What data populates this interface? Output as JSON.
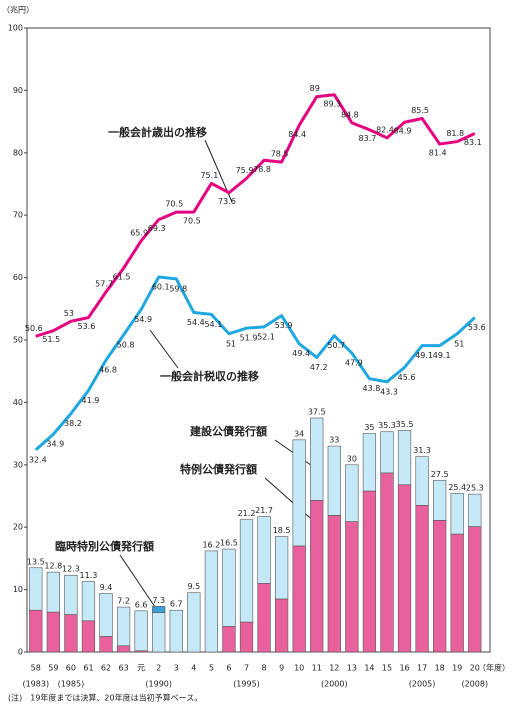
{
  "chart_data": {
    "type": "bar-line",
    "y_unit": "（兆円）",
    "x_unit": "（年度）",
    "note": "(注)　19年度までは決算、20年度は当初予算ベース。",
    "categories": [
      "58",
      "59",
      "60",
      "61",
      "62",
      "63",
      "元",
      "2",
      "3",
      "4",
      "5",
      "6",
      "7",
      "8",
      "9",
      "10",
      "11",
      "12",
      "13",
      "14",
      "15",
      "16",
      "17",
      "18",
      "19",
      "20"
    ],
    "year_labels": [
      "(1983)",
      null,
      "(1985)",
      null,
      null,
      null,
      null,
      "(1990)",
      null,
      null,
      null,
      null,
      "(1995)",
      null,
      null,
      null,
      null,
      "(2000)",
      null,
      null,
      null,
      null,
      "(2005)",
      null,
      null,
      "(2008)"
    ],
    "ylim": [
      0,
      100
    ],
    "yticks": [
      0,
      10,
      20,
      30,
      40,
      50,
      60,
      70,
      80,
      90,
      100
    ],
    "bar_series": [
      {
        "name": "特例公債発行額",
        "color": "#e8619c",
        "values": [
          6.7,
          6.4,
          6.0,
          5.0,
          2.5,
          1.0,
          0.2,
          0,
          0,
          0,
          0,
          4.1,
          4.8,
          11.0,
          8.5,
          17.0,
          24.3,
          21.9,
          20.9,
          25.8,
          28.7,
          26.8,
          23.5,
          21.1,
          18.9,
          20.1
        ]
      },
      {
        "name": "臨時特別公債発行額",
        "color": "#3a9fd6",
        "values": [
          0,
          0,
          0,
          0,
          0,
          0,
          0,
          1.0,
          0,
          0,
          0,
          0,
          0,
          0,
          0,
          0,
          0,
          0,
          0,
          0,
          0,
          0,
          0,
          0,
          0,
          0
        ]
      },
      {
        "name": "建設公債発行額",
        "color": "#c6e9f8",
        "values": [
          6.8,
          6.4,
          6.3,
          6.3,
          6.9,
          6.2,
          6.4,
          6.3,
          6.7,
          9.5,
          16.2,
          12.4,
          16.4,
          10.7,
          10.0,
          17.0,
          13.2,
          11.1,
          9.1,
          9.2,
          6.6,
          8.7,
          7.8,
          6.4,
          6.5,
          5.2
        ]
      }
    ],
    "totals": [
      13.5,
      12.8,
      12.3,
      11.3,
      9.4,
      7.2,
      6.6,
      7.3,
      6.7,
      9.5,
      16.2,
      16.5,
      21.2,
      21.7,
      18.5,
      34.0,
      37.5,
      33.0,
      30.0,
      35.0,
      35.3,
      35.5,
      31.3,
      27.5,
      25.4,
      25.3
    ],
    "line_series": [
      {
        "name": "一般会計歳出の推移",
        "color": "#e4007f",
        "values": [
          50.6,
          51.5,
          53.0,
          53.6,
          57.7,
          61.5,
          65.9,
          69.3,
          70.5,
          70.5,
          75.1,
          73.6,
          75.9,
          78.8,
          78.5,
          84.4,
          89.0,
          89.3,
          84.8,
          83.7,
          82.4,
          84.9,
          85.5,
          81.4,
          81.8,
          83.1
        ]
      },
      {
        "name": "一般会計税収の推移",
        "color": "#1ea7e1",
        "values": [
          32.4,
          34.9,
          38.2,
          41.9,
          46.8,
          50.8,
          54.9,
          60.1,
          59.8,
          54.4,
          54.1,
          51.0,
          51.9,
          52.1,
          53.9,
          49.4,
          47.2,
          50.7,
          47.9,
          43.8,
          43.3,
          45.6,
          49.1,
          49.1,
          51.0,
          53.6
        ]
      }
    ]
  }
}
